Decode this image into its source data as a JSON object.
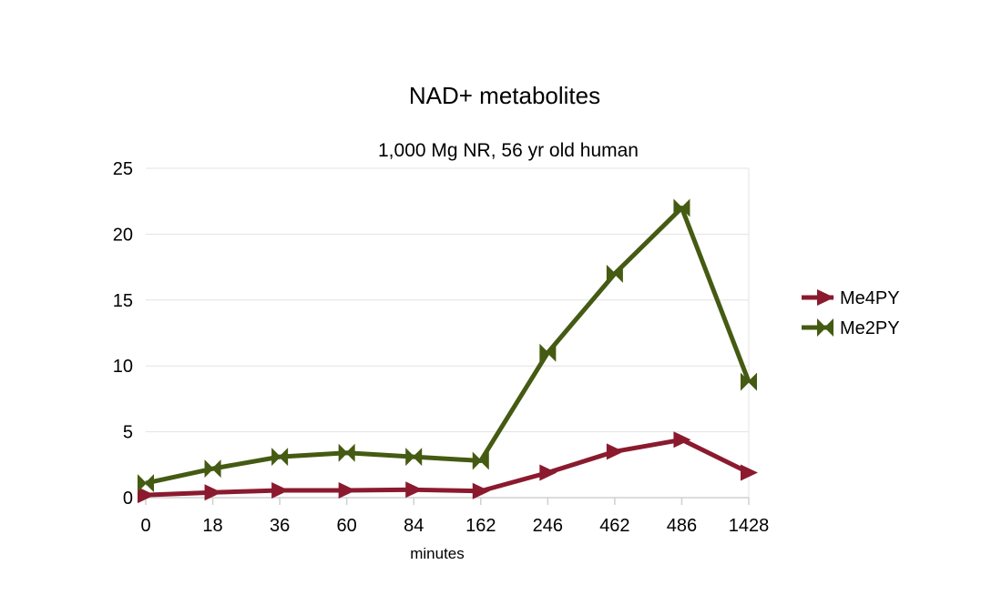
{
  "chart_data": {
    "type": "line",
    "title": "NAD+ metabolites",
    "subtitle": "1,000 Mg NR, 56 yr old human",
    "xlabel": "minutes",
    "ylabel": "",
    "categories": [
      "0",
      "18",
      "36",
      "60",
      "84",
      "162",
      "246",
      "462",
      "486",
      "1428"
    ],
    "ylim": [
      0,
      25
    ],
    "yticks": [
      0,
      5,
      10,
      15,
      20,
      25
    ],
    "grid": "horizontal",
    "legend_position": "right",
    "series": [
      {
        "name": "Me4PY",
        "color": "#8b1a2e",
        "marker": "triangle-right",
        "values": [
          0.2,
          0.4,
          0.55,
          0.55,
          0.6,
          0.5,
          1.9,
          3.5,
          4.4,
          1.9
        ]
      },
      {
        "name": "Me2PY",
        "color": "#455a12",
        "marker": "bowtie",
        "values": [
          1.1,
          2.2,
          3.1,
          3.4,
          3.1,
          2.8,
          11.0,
          17.0,
          22.0,
          8.8
        ]
      }
    ]
  }
}
